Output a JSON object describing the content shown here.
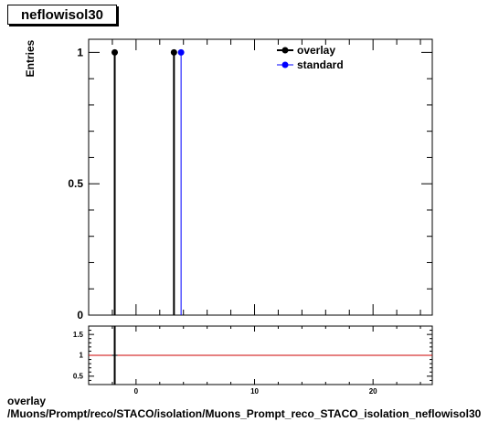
{
  "page_title": "neflowisol30",
  "footer": {
    "line1": "overlay",
    "line2": "/Muons/Prompt/reco/STACO/isolation/Muons_Prompt_reco_STACO_isolation_neflowisol30"
  },
  "chart_data": [
    {
      "type": "scatter",
      "title": "",
      "ylabel": "Entries",
      "xlabel": "",
      "xlim": [
        -4,
        25
      ],
      "ylim": [
        0,
        1.05
      ],
      "yticks": [
        {
          "v": 0,
          "label": "0"
        },
        {
          "v": 0.5,
          "label": "0.5"
        },
        {
          "v": 1,
          "label": "1"
        }
      ],
      "xticks": [],
      "legend": {
        "placement": "top-right",
        "entries": [
          {
            "name": "overlay",
            "color": "#000000"
          },
          {
            "name": "standard",
            "color": "#0000ff"
          }
        ]
      },
      "series": [
        {
          "name": "overlay",
          "color": "#000000",
          "points": [
            {
              "x": -1.8,
              "y": 1
            },
            {
              "x": 3.2,
              "y": 1
            }
          ]
        },
        {
          "name": "standard",
          "color": "#0000ff",
          "points": [
            {
              "x": 3.8,
              "y": 1
            }
          ]
        }
      ],
      "grid": false
    },
    {
      "type": "line",
      "title": "",
      "ylabel": "",
      "xlabel": "",
      "xlim": [
        -4,
        25
      ],
      "ylim": [
        0.3,
        1.7
      ],
      "yticks": [
        {
          "v": 0.5,
          "label": "0.5"
        },
        {
          "v": 1,
          "label": "1"
        },
        {
          "v": 1.5,
          "label": "1.5"
        }
      ],
      "xticks": [
        {
          "v": 0,
          "label": "0"
        },
        {
          "v": 10,
          "label": "10"
        },
        {
          "v": 20,
          "label": "20"
        }
      ],
      "reference_line": {
        "y": 1,
        "color": "#cc0000"
      },
      "series": [
        {
          "name": "ratio",
          "color": "#000000",
          "points": [
            {
              "x": -1.8,
              "y": 1
            }
          ]
        }
      ],
      "grid": false
    }
  ]
}
